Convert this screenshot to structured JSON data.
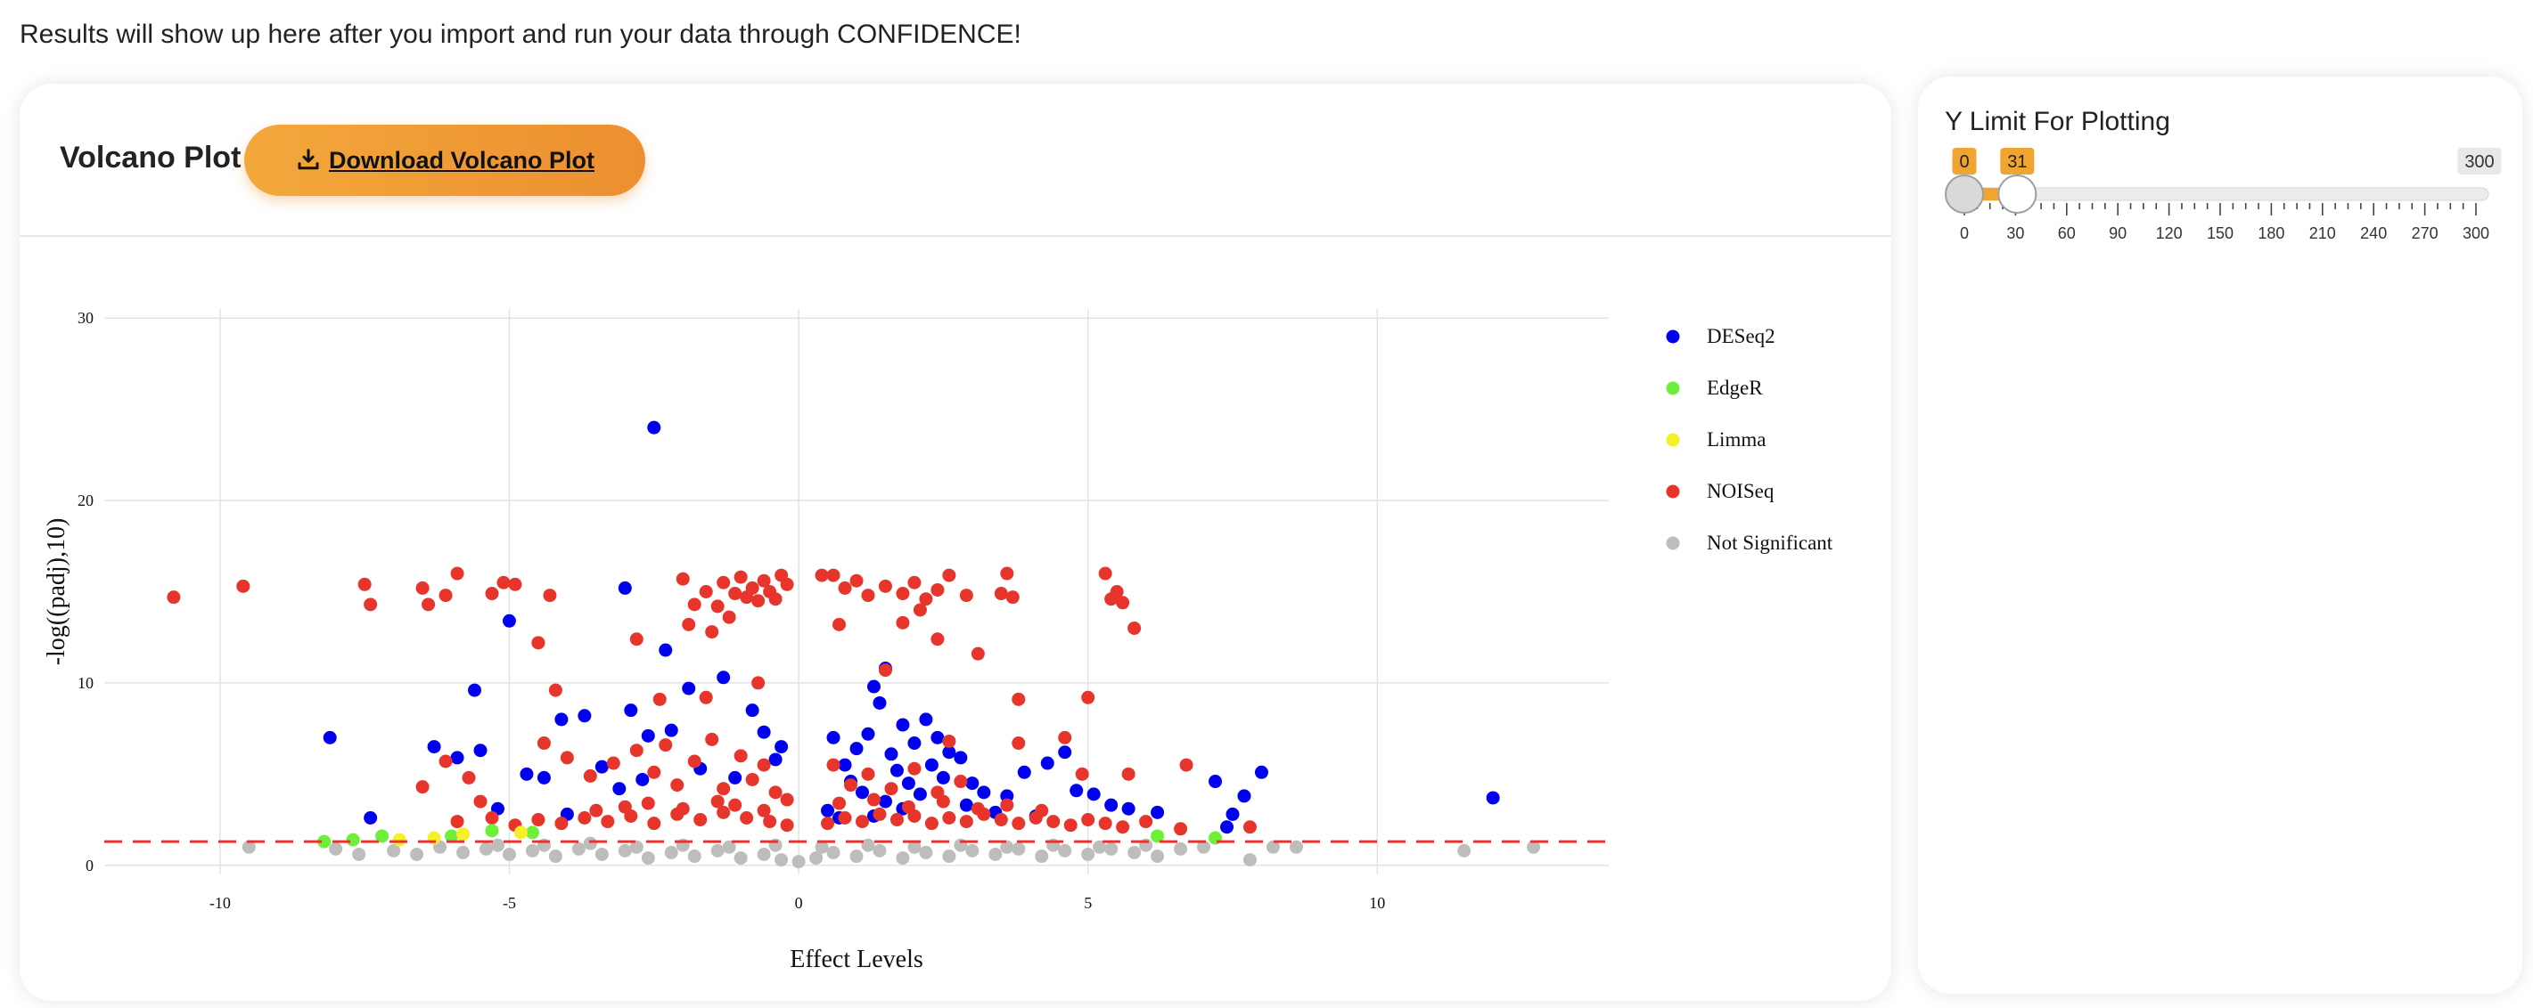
{
  "intro_text": "Results will show up here after you import and run your data through CONFIDENCE!",
  "plot_panel": {
    "title": "Volcano Plot",
    "download_label": "Download Volcano Plot"
  },
  "ylimit_panel": {
    "title": "Y Limit For Plotting",
    "slider": {
      "min": 0,
      "max": 300,
      "from": 0,
      "to": 31,
      "from_label": "0",
      "to_label": "31",
      "max_label": "300",
      "ticks": [
        "0",
        "30",
        "60",
        "90",
        "120",
        "150",
        "180",
        "210",
        "240",
        "270",
        "300"
      ],
      "accent": "#f0a531"
    }
  },
  "chart_data": {
    "type": "scatter",
    "xlabel": "Effect Levels",
    "ylabel": "-log((padj),10)",
    "xlim": [
      -12.0,
      14.0
    ],
    "ylim": [
      -0.5,
      30.5
    ],
    "x_ticks": [
      -10,
      -5,
      0,
      5,
      10
    ],
    "x_tick_labels": [
      "-10",
      "-5",
      "0",
      "5",
      "10"
    ],
    "y_ticks": [
      0,
      10,
      20,
      30
    ],
    "y_tick_labels": [
      "0",
      "10",
      "20",
      "30"
    ],
    "threshold_line": {
      "y": 1.3,
      "color": "#e8352b",
      "style": "dashed"
    },
    "grid": true,
    "legend_position": "right",
    "series": [
      {
        "name": "DESeq2",
        "color": "#0000f0",
        "points": [
          [
            -2.5,
            24.0
          ],
          [
            -8.1,
            7.0
          ],
          [
            -5.0,
            13.4
          ],
          [
            -3.0,
            15.2
          ],
          [
            -5.6,
            9.6
          ],
          [
            -2.3,
            11.8
          ],
          [
            -6.3,
            6.5
          ],
          [
            -5.9,
            5.9
          ],
          [
            -5.5,
            6.3
          ],
          [
            -4.7,
            5.0
          ],
          [
            -4.4,
            4.8
          ],
          [
            -4.1,
            8.0
          ],
          [
            -3.7,
            8.2
          ],
          [
            -2.9,
            8.5
          ],
          [
            -2.6,
            7.1
          ],
          [
            -2.2,
            7.4
          ],
          [
            -1.9,
            9.7
          ],
          [
            -1.3,
            10.3
          ],
          [
            -0.8,
            8.5
          ],
          [
            -0.6,
            7.3
          ],
          [
            -0.4,
            5.8
          ],
          [
            -3.4,
            5.4
          ],
          [
            -3.1,
            4.2
          ],
          [
            -2.7,
            4.7
          ],
          [
            -1.7,
            5.3
          ],
          [
            -1.1,
            4.8
          ],
          [
            -0.3,
            6.5
          ],
          [
            -7.4,
            2.6
          ],
          [
            -5.2,
            3.1
          ],
          [
            -4.0,
            2.8
          ],
          [
            0.6,
            7.0
          ],
          [
            0.8,
            5.5
          ],
          [
            1.0,
            6.4
          ],
          [
            1.2,
            7.2
          ],
          [
            1.4,
            8.9
          ],
          [
            1.3,
            9.8
          ],
          [
            1.5,
            10.8
          ],
          [
            1.6,
            6.1
          ],
          [
            1.8,
            7.7
          ],
          [
            1.7,
            5.2
          ],
          [
            1.9,
            4.5
          ],
          [
            2.0,
            6.7
          ],
          [
            2.2,
            8.0
          ],
          [
            2.4,
            7.0
          ],
          [
            2.6,
            6.2
          ],
          [
            2.3,
            5.5
          ],
          [
            2.8,
            5.9
          ],
          [
            2.5,
            4.8
          ],
          [
            3.0,
            4.5
          ],
          [
            3.2,
            4.0
          ],
          [
            3.6,
            3.8
          ],
          [
            3.9,
            5.1
          ],
          [
            4.3,
            5.6
          ],
          [
            4.6,
            6.2
          ],
          [
            4.8,
            4.1
          ],
          [
            5.1,
            3.9
          ],
          [
            5.4,
            3.3
          ],
          [
            5.7,
            3.1
          ],
          [
            6.2,
            2.9
          ],
          [
            1.1,
            4.0
          ],
          [
            1.5,
            3.5
          ],
          [
            0.9,
            4.6
          ],
          [
            2.1,
            3.9
          ],
          [
            2.9,
            3.3
          ],
          [
            3.4,
            2.9
          ],
          [
            4.1,
            2.7
          ],
          [
            7.2,
            4.6
          ],
          [
            7.7,
            3.8
          ],
          [
            8.0,
            5.1
          ],
          [
            7.4,
            2.1
          ],
          [
            7.5,
            2.8
          ],
          [
            12.0,
            3.7
          ],
          [
            0.5,
            3.0
          ],
          [
            0.7,
            2.6
          ],
          [
            1.3,
            2.7
          ],
          [
            1.8,
            3.1
          ]
        ]
      },
      {
        "name": "EdgeR",
        "color": "#6ef03b",
        "points": [
          [
            -8.2,
            1.3
          ],
          [
            -7.7,
            1.4
          ],
          [
            -7.2,
            1.6
          ],
          [
            -6.0,
            1.6
          ],
          [
            -5.3,
            1.9
          ],
          [
            -4.6,
            1.8
          ],
          [
            7.2,
            1.5
          ],
          [
            6.2,
            1.6
          ]
        ]
      },
      {
        "name": "Limma",
        "color": "#f5f028",
        "points": [
          [
            -6.9,
            1.4
          ],
          [
            -6.3,
            1.5
          ],
          [
            -5.8,
            1.7
          ],
          [
            -4.8,
            1.8
          ]
        ]
      },
      {
        "name": "NOISeq",
        "color": "#e8352b",
        "points": [
          [
            -10.8,
            14.7
          ],
          [
            -9.6,
            15.3
          ],
          [
            -7.5,
            15.4
          ],
          [
            -7.4,
            14.3
          ],
          [
            -6.5,
            15.2
          ],
          [
            -6.4,
            14.3
          ],
          [
            -6.1,
            14.8
          ],
          [
            -5.9,
            16.0
          ],
          [
            -5.3,
            14.9
          ],
          [
            -5.1,
            15.5
          ],
          [
            -4.9,
            15.4
          ],
          [
            -4.3,
            14.8
          ],
          [
            -4.5,
            12.2
          ],
          [
            -4.2,
            9.6
          ],
          [
            -2.8,
            12.4
          ],
          [
            -2.4,
            9.1
          ],
          [
            -2.0,
            15.7
          ],
          [
            -1.8,
            14.3
          ],
          [
            -1.6,
            15.0
          ],
          [
            -1.4,
            14.2
          ],
          [
            -1.3,
            15.5
          ],
          [
            -1.1,
            14.9
          ],
          [
            -1.0,
            15.8
          ],
          [
            -0.9,
            14.7
          ],
          [
            -0.8,
            15.2
          ],
          [
            -0.7,
            14.5
          ],
          [
            -0.6,
            15.6
          ],
          [
            -0.5,
            15.0
          ],
          [
            -0.4,
            14.6
          ],
          [
            -0.3,
            15.9
          ],
          [
            -0.2,
            15.4
          ],
          [
            -1.5,
            12.8
          ],
          [
            -1.2,
            13.6
          ],
          [
            -1.9,
            13.2
          ],
          [
            -1.6,
            9.2
          ],
          [
            -0.7,
            10.0
          ],
          [
            -6.1,
            5.7
          ],
          [
            -6.5,
            4.3
          ],
          [
            -5.7,
            4.8
          ],
          [
            -5.5,
            3.5
          ],
          [
            -4.4,
            6.7
          ],
          [
            -4.0,
            5.9
          ],
          [
            -3.6,
            4.9
          ],
          [
            -3.2,
            5.6
          ],
          [
            -2.8,
            6.3
          ],
          [
            -2.5,
            5.1
          ],
          [
            -2.3,
            6.6
          ],
          [
            -2.1,
            4.4
          ],
          [
            -1.8,
            5.7
          ],
          [
            -1.5,
            6.9
          ],
          [
            -1.3,
            4.2
          ],
          [
            -1.0,
            6.0
          ],
          [
            -0.8,
            4.7
          ],
          [
            -0.6,
            5.5
          ],
          [
            -0.4,
            4.0
          ],
          [
            -0.2,
            3.6
          ],
          [
            -5.9,
            2.4
          ],
          [
            -5.3,
            2.6
          ],
          [
            -4.9,
            2.2
          ],
          [
            -4.5,
            2.5
          ],
          [
            -4.1,
            2.3
          ],
          [
            -3.7,
            2.6
          ],
          [
            -3.3,
            2.4
          ],
          [
            -2.9,
            2.7
          ],
          [
            -2.5,
            2.3
          ],
          [
            -2.1,
            2.8
          ],
          [
            -1.7,
            2.5
          ],
          [
            -1.3,
            2.9
          ],
          [
            -0.9,
            2.6
          ],
          [
            -0.5,
            2.4
          ],
          [
            -0.2,
            2.2
          ],
          [
            -3.5,
            3.0
          ],
          [
            -3.0,
            3.2
          ],
          [
            -2.6,
            3.4
          ],
          [
            -2.0,
            3.1
          ],
          [
            -1.4,
            3.5
          ],
          [
            -1.1,
            3.3
          ],
          [
            -0.6,
            3.0
          ],
          [
            0.4,
            15.9
          ],
          [
            0.6,
            15.9
          ],
          [
            0.8,
            15.2
          ],
          [
            1.0,
            15.6
          ],
          [
            1.2,
            14.8
          ],
          [
            1.5,
            15.3
          ],
          [
            1.8,
            14.9
          ],
          [
            2.0,
            15.5
          ],
          [
            2.2,
            14.6
          ],
          [
            2.4,
            15.1
          ],
          [
            2.6,
            15.9
          ],
          [
            2.9,
            14.8
          ],
          [
            3.1,
            11.6
          ],
          [
            3.5,
            14.9
          ],
          [
            3.6,
            16.0
          ],
          [
            3.7,
            14.7
          ],
          [
            5.3,
            16.0
          ],
          [
            5.4,
            14.6
          ],
          [
            5.5,
            15.0
          ],
          [
            5.6,
            14.4
          ],
          [
            5.8,
            13.0
          ],
          [
            0.7,
            13.2
          ],
          [
            1.5,
            10.7
          ],
          [
            1.8,
            13.3
          ],
          [
            2.1,
            14.0
          ],
          [
            2.4,
            12.4
          ],
          [
            3.8,
            9.1
          ],
          [
            5.0,
            9.2
          ],
          [
            3.8,
            6.7
          ],
          [
            4.6,
            7.0
          ],
          [
            4.9,
            5.0
          ],
          [
            5.7,
            5.0
          ],
          [
            6.7,
            5.5
          ],
          [
            2.6,
            6.8
          ],
          [
            0.6,
            5.5
          ],
          [
            0.9,
            4.4
          ],
          [
            1.2,
            5.0
          ],
          [
            1.6,
            4.2
          ],
          [
            2.0,
            5.3
          ],
          [
            2.4,
            4.0
          ],
          [
            2.8,
            4.6
          ],
          [
            0.5,
            2.3
          ],
          [
            0.8,
            2.6
          ],
          [
            1.1,
            2.4
          ],
          [
            1.4,
            2.8
          ],
          [
            1.7,
            2.5
          ],
          [
            2.0,
            2.7
          ],
          [
            2.3,
            2.3
          ],
          [
            2.6,
            2.6
          ],
          [
            2.9,
            2.4
          ],
          [
            3.2,
            2.8
          ],
          [
            3.5,
            2.5
          ],
          [
            3.8,
            2.3
          ],
          [
            4.1,
            2.6
          ],
          [
            4.4,
            2.4
          ],
          [
            4.7,
            2.2
          ],
          [
            5.0,
            2.5
          ],
          [
            5.3,
            2.3
          ],
          [
            5.6,
            2.1
          ],
          [
            6.0,
            2.4
          ],
          [
            6.6,
            2.0
          ],
          [
            7.8,
            2.1
          ],
          [
            0.7,
            3.4
          ],
          [
            1.3,
            3.6
          ],
          [
            1.9,
            3.2
          ],
          [
            2.5,
            3.5
          ],
          [
            3.1,
            3.1
          ],
          [
            3.6,
            3.3
          ],
          [
            4.2,
            3.0
          ]
        ]
      },
      {
        "name": "Not Significant",
        "color": "#bdbdbd",
        "points": [
          [
            -9.5,
            1.0
          ],
          [
            -8.0,
            0.9
          ],
          [
            -7.6,
            0.6
          ],
          [
            -7.0,
            0.8
          ],
          [
            -6.6,
            0.6
          ],
          [
            -6.2,
            1.0
          ],
          [
            -5.8,
            0.7
          ],
          [
            -5.4,
            0.9
          ],
          [
            -5.0,
            0.6
          ],
          [
            -4.6,
            0.8
          ],
          [
            -4.2,
            0.5
          ],
          [
            -3.8,
            0.9
          ],
          [
            -3.4,
            0.6
          ],
          [
            -3.0,
            0.8
          ],
          [
            -2.6,
            0.4
          ],
          [
            -2.2,
            0.7
          ],
          [
            -1.8,
            0.5
          ],
          [
            -1.4,
            0.8
          ],
          [
            -1.0,
            0.4
          ],
          [
            -0.6,
            0.6
          ],
          [
            -0.3,
            0.3
          ],
          [
            0.0,
            0.2
          ],
          [
            0.3,
            0.4
          ],
          [
            0.6,
            0.7
          ],
          [
            1.0,
            0.5
          ],
          [
            1.4,
            0.8
          ],
          [
            1.8,
            0.4
          ],
          [
            2.2,
            0.7
          ],
          [
            2.6,
            0.5
          ],
          [
            3.0,
            0.8
          ],
          [
            3.4,
            0.6
          ],
          [
            3.8,
            0.9
          ],
          [
            4.2,
            0.5
          ],
          [
            4.6,
            0.8
          ],
          [
            5.0,
            0.6
          ],
          [
            5.4,
            0.9
          ],
          [
            5.8,
            0.7
          ],
          [
            6.2,
            0.5
          ],
          [
            6.6,
            0.9
          ],
          [
            7.0,
            1.0
          ],
          [
            7.8,
            0.3
          ],
          [
            8.2,
            1.0
          ],
          [
            8.6,
            1.0
          ],
          [
            11.5,
            0.8
          ],
          [
            12.7,
            1.0
          ],
          [
            -5.2,
            1.1
          ],
          [
            -4.4,
            1.1
          ],
          [
            -3.6,
            1.2
          ],
          [
            -2.8,
            1.0
          ],
          [
            -2.0,
            1.1
          ],
          [
            -1.2,
            1.0
          ],
          [
            -0.4,
            1.1
          ],
          [
            0.4,
            1.0
          ],
          [
            1.2,
            1.1
          ],
          [
            2.0,
            1.0
          ],
          [
            2.8,
            1.1
          ],
          [
            3.6,
            1.0
          ],
          [
            4.4,
            1.1
          ],
          [
            5.2,
            1.0
          ],
          [
            6.0,
            1.1
          ]
        ]
      }
    ]
  }
}
